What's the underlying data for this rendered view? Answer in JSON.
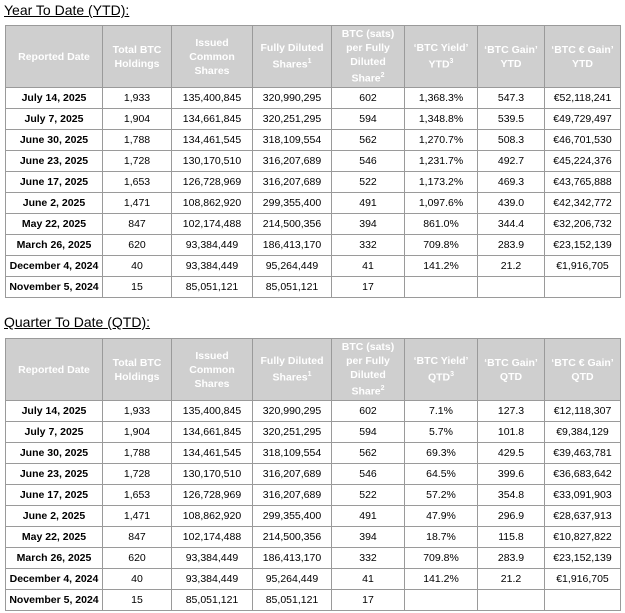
{
  "tables": [
    {
      "title": "Year To Date (YTD):",
      "header": [
        {
          "text": "Reported Date"
        },
        {
          "text": "Total BTC Holdings"
        },
        {
          "text": "Issued Common Shares"
        },
        {
          "text": "Fully Diluted Shares",
          "sup": "1"
        },
        {
          "text": "BTC (sats) per Fully Diluted Share",
          "sup": "2"
        },
        {
          "text": "‘BTC Yield’ YTD",
          "sup": "3"
        },
        {
          "text": "‘BTC Gain’ YTD"
        },
        {
          "text": "‘BTC € Gain’ YTD"
        }
      ],
      "rows": [
        [
          "July 14, 2025",
          "1,933",
          "135,400,845",
          "320,990,295",
          "602",
          "1,368.3%",
          "547.3",
          "€52,118,241"
        ],
        [
          "July 7, 2025",
          "1,904",
          "134,661,845",
          "320,251,295",
          "594",
          "1,348.8%",
          "539.5",
          "€49,729,497"
        ],
        [
          "June 30, 2025",
          "1,788",
          "134,461,545",
          "318,109,554",
          "562",
          "1,270.7%",
          "508.3",
          "€46,701,530"
        ],
        [
          "June 23, 2025",
          "1,728",
          "130,170,510",
          "316,207,689",
          "546",
          "1,231.7%",
          "492.7",
          "€45,224,376"
        ],
        [
          "June 17, 2025",
          "1,653",
          "126,728,969",
          "316,207,689",
          "522",
          "1,173.2%",
          "469.3",
          "€43,765,888"
        ],
        [
          "June 2, 2025",
          "1,471",
          "108,862,920",
          "299,355,400",
          "491",
          "1,097.6%",
          "439.0",
          "€42,342,772"
        ],
        [
          "May 22, 2025",
          "847",
          "102,174,488",
          "214,500,356",
          "394",
          "861.0%",
          "344.4",
          "€32,206,732"
        ],
        [
          "March 26, 2025",
          "620",
          "93,384,449",
          "186,413,170",
          "332",
          "709.8%",
          "283.9",
          "€23,152,139"
        ],
        [
          "December 4, 2024",
          "40",
          "93,384,449",
          "95,264,449",
          "41",
          "141.2%",
          "21.2",
          "€1,916,705"
        ],
        [
          "November 5, 2024",
          "15",
          "85,051,121",
          "85,051,121",
          "17"
        ]
      ]
    },
    {
      "title": "Quarter To Date (QTD):",
      "header": [
        {
          "text": "Reported Date"
        },
        {
          "text": "Total BTC Holdings"
        },
        {
          "text": "Issued Common Shares"
        },
        {
          "text": "Fully Diluted Shares",
          "sup": "1"
        },
        {
          "text": "BTC (sats) per Fully Diluted Share",
          "sup": "2"
        },
        {
          "text": "‘BTC Yield’ QTD",
          "sup": "3"
        },
        {
          "text": "‘BTC Gain’ QTD"
        },
        {
          "text": "‘BTC € Gain’ QTD"
        }
      ],
      "rows": [
        [
          "July 14, 2025",
          "1,933",
          "135,400,845",
          "320,990,295",
          "602",
          "7.1%",
          "127.3",
          "€12,118,307"
        ],
        [
          "July 7, 2025",
          "1,904",
          "134,661,845",
          "320,251,295",
          "594",
          "5.7%",
          "101.8",
          "€9,384,129"
        ],
        [
          "June 30, 2025",
          "1,788",
          "134,461,545",
          "318,109,554",
          "562",
          "69.3%",
          "429.5",
          "€39,463,781"
        ],
        [
          "June 23, 2025",
          "1,728",
          "130,170,510",
          "316,207,689",
          "546",
          "64.5%",
          "399.6",
          "€36,683,642"
        ],
        [
          "June 17, 2025",
          "1,653",
          "126,728,969",
          "316,207,689",
          "522",
          "57.2%",
          "354.8",
          "€33,091,903"
        ],
        [
          "June 2, 2025",
          "1,471",
          "108,862,920",
          "299,355,400",
          "491",
          "47.9%",
          "296.9",
          "€28,637,913"
        ],
        [
          "May 22, 2025",
          "847",
          "102,174,488",
          "214,500,356",
          "394",
          "18.7%",
          "115.8",
          "€10,827,822"
        ],
        [
          "March 26, 2025",
          "620",
          "93,384,449",
          "186,413,170",
          "332",
          "709.8%",
          "283.9",
          "€23,152,139"
        ],
        [
          "December 4, 2024",
          "40",
          "93,384,449",
          "95,264,449",
          "41",
          "141.2%",
          "21.2",
          "€1,916,705"
        ],
        [
          "November 5, 2024",
          "15",
          "85,051,121",
          "85,051,121",
          "17"
        ]
      ]
    }
  ]
}
